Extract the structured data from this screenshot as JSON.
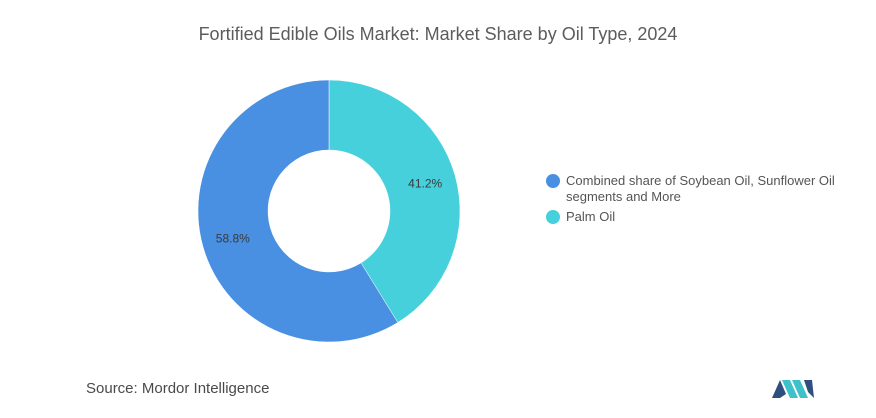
{
  "chart_data": {
    "type": "pie",
    "variant": "donut",
    "title": "Fortified Edible Oils Market: Market Share by Oil Type, 2024",
    "slices": [
      {
        "label": "Combined share of Soybean Oil, Sunflower Oil segments and More",
        "value": 58.8,
        "display": "58.8%",
        "color": "#4a90e2"
      },
      {
        "label": "Palm Oil",
        "value": 41.2,
        "display": "41.2%",
        "color": "#45d0dc"
      }
    ],
    "legend_position": "right"
  },
  "source": {
    "text": "Source:  Mordor Intelligence"
  },
  "logo": {
    "name": "mordor-intelligence-logo",
    "colors": [
      "#2f4f7f",
      "#3fc1c9"
    ]
  }
}
